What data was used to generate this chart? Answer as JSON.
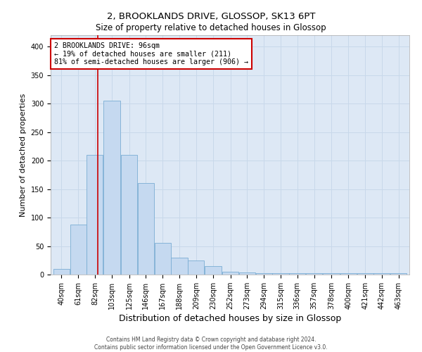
{
  "title1": "2, BROOKLANDS DRIVE, GLOSSOP, SK13 6PT",
  "title2": "Size of property relative to detached houses in Glossop",
  "xlabel": "Distribution of detached houses by size in Glossop",
  "ylabel": "Number of detached properties",
  "footer1": "Contains HM Land Registry data © Crown copyright and database right 2024.",
  "footer2": "Contains public sector information licensed under the Open Government Licence v3.0.",
  "annotation_line1": "2 BROOKLANDS DRIVE: 96sqm",
  "annotation_line2": "← 19% of detached houses are smaller (211)",
  "annotation_line3": "81% of semi-detached houses are larger (906) →",
  "bar_color": "#c5d9f0",
  "bar_edge_color": "#7aadd4",
  "grid_color": "#c8d8ea",
  "background_color": "#dde8f5",
  "fig_background": "#ffffff",
  "redline_x": 96,
  "categories": [
    "40sqm",
    "61sqm",
    "82sqm",
    "103sqm",
    "125sqm",
    "146sqm",
    "167sqm",
    "188sqm",
    "209sqm",
    "230sqm",
    "252sqm",
    "273sqm",
    "294sqm",
    "315sqm",
    "336sqm",
    "357sqm",
    "378sqm",
    "400sqm",
    "421sqm",
    "442sqm",
    "463sqm"
  ],
  "bin_edges": [
    40,
    61,
    82,
    103,
    125,
    146,
    167,
    188,
    209,
    230,
    252,
    273,
    294,
    315,
    336,
    357,
    378,
    400,
    421,
    442,
    463,
    484
  ],
  "values": [
    10,
    88,
    210,
    305,
    210,
    160,
    55,
    30,
    25,
    15,
    5,
    4,
    3,
    3,
    2,
    2,
    2,
    2,
    2,
    2,
    2
  ],
  "ylim": [
    0,
    420
  ],
  "yticks": [
    0,
    50,
    100,
    150,
    200,
    250,
    300,
    350,
    400
  ],
  "annotation_box_color": "#ffffff",
  "annotation_box_edge": "#cc0000",
  "redline_color": "#cc0000",
  "title_fontsize": 9.5,
  "ylabel_fontsize": 8,
  "xlabel_fontsize": 9,
  "tick_fontsize": 7,
  "footer_fontsize": 5.5
}
